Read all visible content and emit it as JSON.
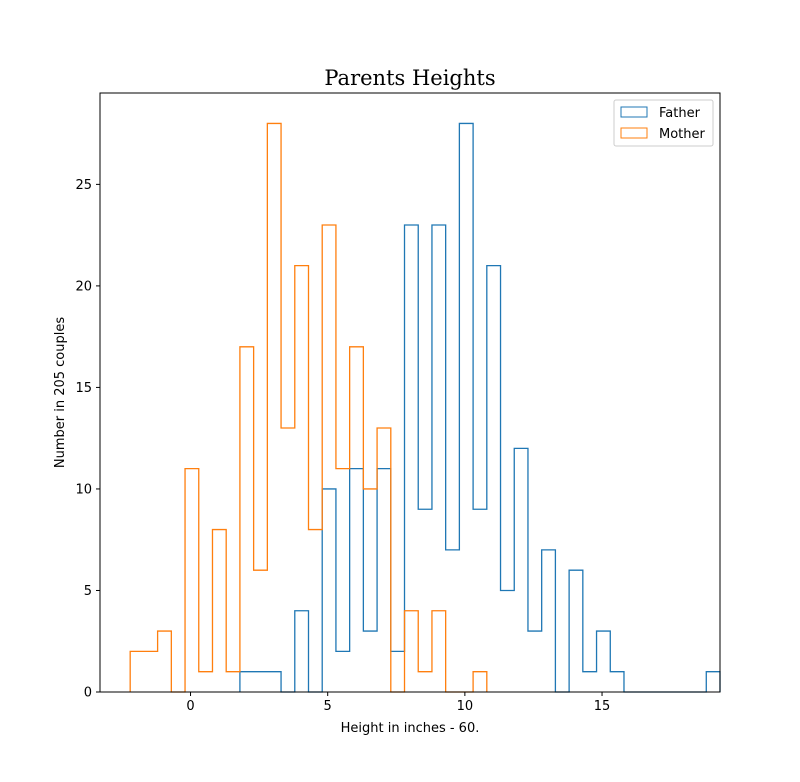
{
  "chart_data": {
    "type": "histogram",
    "histtype": "step",
    "title": "Parents Heights",
    "xlabel": "Height in inches - 60.",
    "ylabel": "Number in 205 couples",
    "xlim": [
      -3.3,
      19.3
    ],
    "ylim": [
      0,
      29.5
    ],
    "xticks": [
      0,
      5,
      10,
      15
    ],
    "yticks": [
      0,
      5,
      10,
      15,
      20,
      25
    ],
    "grid": false,
    "legend_position": "top-right",
    "series": [
      {
        "name": "Father",
        "color": "#1f77b4",
        "bin_start": 1.8,
        "bin_width": 0.5,
        "counts": [
          1,
          1,
          1,
          0,
          4,
          0,
          10,
          2,
          11,
          3,
          11,
          2,
          23,
          9,
          23,
          7,
          28,
          9,
          21,
          5,
          12,
          3,
          7,
          0,
          6,
          1,
          3,
          1,
          0,
          0,
          0,
          0,
          0,
          0,
          1
        ]
      },
      {
        "name": "Mother",
        "color": "#ff7f0e",
        "bin_start": -2.2,
        "bin_width": 0.5,
        "counts": [
          2,
          2,
          3,
          0,
          11,
          1,
          8,
          1,
          17,
          6,
          28,
          13,
          21,
          8,
          23,
          11,
          17,
          10,
          13,
          0,
          4,
          1,
          4,
          0,
          0,
          1
        ]
      }
    ]
  }
}
